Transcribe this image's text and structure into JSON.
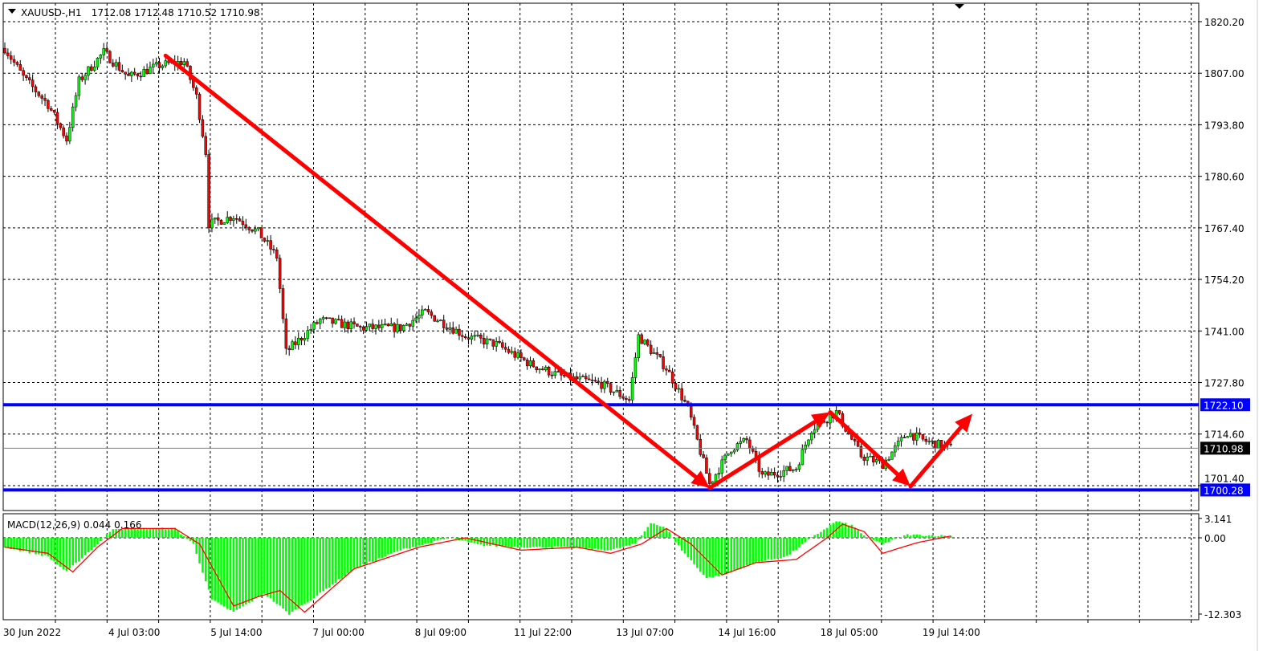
{
  "header": {
    "symbol": "XAUUSD-,H1",
    "ohlc": "1712.08 1712.48 1710.52 1710.98"
  },
  "colors": {
    "bull": "#00ff00",
    "bear": "#ff0000",
    "wick": "#000000",
    "level": "#0000ff",
    "arrow": "#ff0000",
    "macd_hist": "#00ff00",
    "macd_signal": "#ff0000"
  },
  "chart_data": [
    {
      "type": "candlestick",
      "title": "XAUUSD-,H1",
      "y_ticks": [
        "1820.20",
        "1807.00",
        "1793.80",
        "1780.60",
        "1767.40",
        "1754.20",
        "1741.00",
        "1727.80",
        "1714.60",
        "1701.40"
      ],
      "x_ticks": [
        "30 Jun 2022",
        "4 Jul 03:00",
        "5 Jul 14:00",
        "7 Jul 00:00",
        "8 Jul 09:00",
        "11 Jul 22:00",
        "13 Jul 07:00",
        "14 Jul 16:00",
        "18 Jul 05:00",
        "19 Jul 14:00"
      ],
      "ylim": [
        1697.5,
        1825.5
      ],
      "grid": true,
      "close_path": [
        [
          0,
          1813.4
        ],
        [
          6,
          1806
        ],
        [
          14,
          1799
        ],
        [
          20,
          1790
        ],
        [
          24,
          1805
        ],
        [
          32,
          1812.4
        ],
        [
          40,
          1806
        ],
        [
          50,
          1809
        ],
        [
          58,
          1810
        ],
        [
          62,
          1801
        ],
        [
          65,
          1786.8
        ],
        [
          66,
          1768.4
        ],
        [
          74,
          1770.4
        ],
        [
          82,
          1766.3
        ],
        [
          88,
          1760
        ],
        [
          91,
          1735.6
        ],
        [
          102,
          1743.8
        ],
        [
          115,
          1741.8
        ],
        [
          128,
          1741.8
        ],
        [
          136,
          1745.8
        ],
        [
          149,
          1739.7
        ],
        [
          159,
          1737.6
        ],
        [
          170,
          1732.5
        ],
        [
          180,
          1729.4
        ],
        [
          193,
          1727.4
        ],
        [
          202,
          1723.3
        ],
        [
          205,
          1739.7
        ],
        [
          214,
          1731.5
        ],
        [
          221,
          1721.2
        ],
        [
          228,
          1701.8
        ],
        [
          235,
          1711
        ],
        [
          240,
          1713
        ],
        [
          245,
          1703.8
        ],
        [
          256,
          1705.9
        ],
        [
          261,
          1716
        ],
        [
          269,
          1720.2
        ],
        [
          277,
          1709
        ],
        [
          284,
          1706.9
        ],
        [
          292,
          1715
        ],
        [
          297,
          1713
        ],
        [
          306,
          1711
        ]
      ],
      "levels": [
        {
          "label": "1722.10",
          "price": 1722.1,
          "color": "#0000ff"
        },
        {
          "label": "1700.28",
          "price": 1700.28,
          "color": "#0000ff"
        }
      ],
      "current_price": {
        "label": "1710.98",
        "price": 1710.98
      },
      "arrows": [
        {
          "from": [
            52,
            1811.5
          ],
          "to": [
            228,
            1700.8
          ]
        },
        {
          "from": [
            228,
            1700.8
          ],
          "to": [
            267,
            1720.2
          ]
        },
        {
          "from": [
            267,
            1720.2
          ],
          "to": [
            293,
            1701.2
          ]
        },
        {
          "from": [
            293,
            1701.2
          ],
          "to": [
            313,
            1719.8
          ]
        }
      ]
    },
    {
      "type": "bar+line",
      "title": "MACD(12,26,9) 0.044 0.166",
      "y_ticks": [
        "3.141",
        "0.00",
        "-12.303"
      ],
      "ylim": [
        -12.303,
        3.141
      ],
      "histogram_path": [
        [
          0,
          -1.5
        ],
        [
          14,
          -3
        ],
        [
          20,
          -5.5
        ],
        [
          30,
          -1
        ],
        [
          35,
          1.5
        ],
        [
          55,
          1.5
        ],
        [
          61,
          -1
        ],
        [
          67,
          -10
        ],
        [
          74,
          -12
        ],
        [
          84,
          -9
        ],
        [
          92,
          -12.3
        ],
        [
          102,
          -9
        ],
        [
          113,
          -5
        ],
        [
          128,
          -2
        ],
        [
          144,
          0
        ],
        [
          154,
          -1.2
        ],
        [
          167,
          -1.5
        ],
        [
          180,
          -1.5
        ],
        [
          196,
          -2
        ],
        [
          204,
          -1
        ],
        [
          209,
          2.5
        ],
        [
          214,
          1.5
        ],
        [
          219,
          -2
        ],
        [
          227,
          -6.5
        ],
        [
          232,
          -6
        ],
        [
          243,
          -4
        ],
        [
          253,
          -3
        ],
        [
          261,
          0
        ],
        [
          269,
          2.7
        ],
        [
          274,
          2
        ],
        [
          279,
          0
        ],
        [
          284,
          -1
        ],
        [
          292,
          0.5
        ],
        [
          306,
          0.3
        ]
      ],
      "signal_path": [
        [
          0,
          -1.5
        ],
        [
          14,
          -2.5
        ],
        [
          22,
          -5.5
        ],
        [
          30,
          -1.5
        ],
        [
          38,
          1.5
        ],
        [
          55,
          1.5
        ],
        [
          63,
          -1
        ],
        [
          74,
          -11
        ],
        [
          82,
          -9.5
        ],
        [
          89,
          -8.5
        ],
        [
          97,
          -12
        ],
        [
          113,
          -5
        ],
        [
          134,
          -1.5
        ],
        [
          149,
          0
        ],
        [
          167,
          -2
        ],
        [
          185,
          -1.5
        ],
        [
          196,
          -2.5
        ],
        [
          206,
          -1
        ],
        [
          214,
          1.5
        ],
        [
          222,
          -1
        ],
        [
          232,
          -6
        ],
        [
          243,
          -4
        ],
        [
          256,
          -3.5
        ],
        [
          266,
          0
        ],
        [
          271,
          2.2
        ],
        [
          278,
          1
        ],
        [
          284,
          -2.5
        ],
        [
          295,
          -0.8
        ],
        [
          306,
          0.3
        ]
      ]
    }
  ]
}
